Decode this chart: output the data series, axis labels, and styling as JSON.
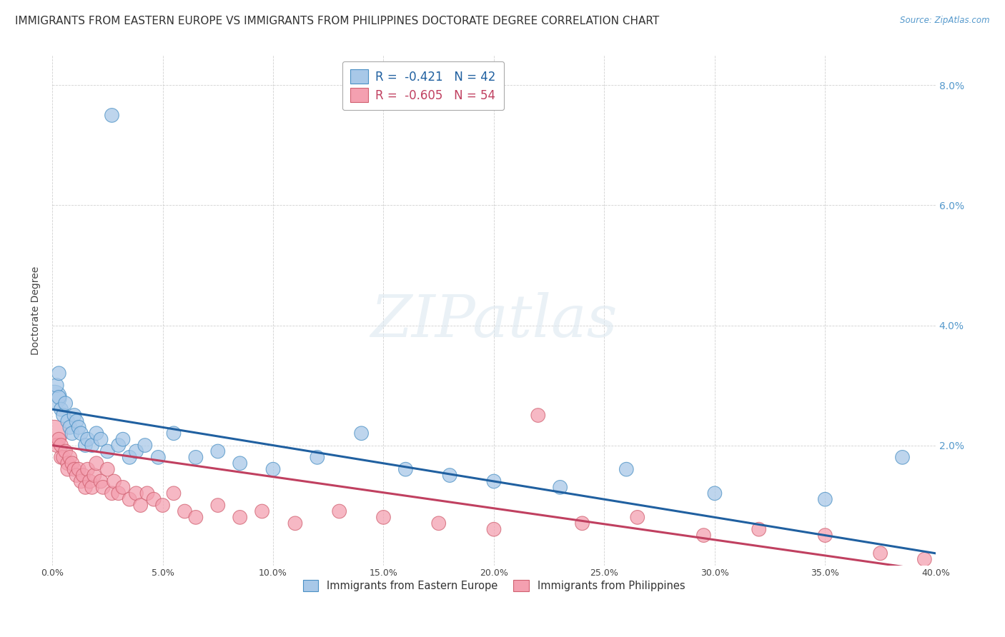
{
  "title": "IMMIGRANTS FROM EASTERN EUROPE VS IMMIGRANTS FROM PHILIPPINES DOCTORATE DEGREE CORRELATION CHART",
  "source": "Source: ZipAtlas.com",
  "ylabel": "Doctorate Degree",
  "xlabel": "",
  "xlim": [
    0.0,
    0.4
  ],
  "ylim": [
    0.0,
    0.085
  ],
  "xticks": [
    0.0,
    0.05,
    0.1,
    0.15,
    0.2,
    0.25,
    0.3,
    0.35,
    0.4
  ],
  "xtick_labels": [
    "0.0%",
    "5.0%",
    "10.0%",
    "15.0%",
    "20.0%",
    "25.0%",
    "30.0%",
    "35.0%",
    "40.0%"
  ],
  "yticks": [
    0.0,
    0.02,
    0.04,
    0.06,
    0.08
  ],
  "ytick_labels_right": [
    "",
    "2.0%",
    "4.0%",
    "6.0%",
    "8.0%"
  ],
  "series1_label": "Immigrants from Eastern Europe",
  "series1_color": "#a8c8e8",
  "series1_edge_color": "#4a90c4",
  "series1_line_color": "#2060a0",
  "series1_R": "-0.421",
  "series1_N": "42",
  "series2_label": "Immigrants from Philippines",
  "series2_color": "#f4a0b0",
  "series2_edge_color": "#d06070",
  "series2_line_color": "#c04060",
  "series2_R": "-0.605",
  "series2_N": "54",
  "series1_x": [
    0.001,
    0.002,
    0.003,
    0.003,
    0.004,
    0.005,
    0.006,
    0.007,
    0.008,
    0.009,
    0.01,
    0.011,
    0.012,
    0.013,
    0.015,
    0.016,
    0.018,
    0.02,
    0.022,
    0.025,
    0.027,
    0.03,
    0.032,
    0.035,
    0.038,
    0.042,
    0.048,
    0.055,
    0.065,
    0.075,
    0.085,
    0.1,
    0.12,
    0.14,
    0.16,
    0.18,
    0.2,
    0.23,
    0.26,
    0.3,
    0.35,
    0.385
  ],
  "series1_y": [
    0.028,
    0.03,
    0.032,
    0.028,
    0.026,
    0.025,
    0.027,
    0.024,
    0.023,
    0.022,
    0.025,
    0.024,
    0.023,
    0.022,
    0.02,
    0.021,
    0.02,
    0.022,
    0.021,
    0.019,
    0.075,
    0.02,
    0.021,
    0.018,
    0.019,
    0.02,
    0.018,
    0.022,
    0.018,
    0.019,
    0.017,
    0.016,
    0.018,
    0.022,
    0.016,
    0.015,
    0.014,
    0.013,
    0.016,
    0.012,
    0.011,
    0.018
  ],
  "series1_sizes": [
    600,
    200,
    200,
    200,
    200,
    200,
    200,
    200,
    200,
    200,
    200,
    200,
    200,
    200,
    200,
    200,
    200,
    200,
    200,
    200,
    200,
    200,
    200,
    200,
    200,
    200,
    200,
    200,
    200,
    200,
    200,
    200,
    200,
    200,
    200,
    200,
    200,
    200,
    200,
    200,
    200,
    200
  ],
  "series2_x": [
    0.001,
    0.002,
    0.003,
    0.004,
    0.004,
    0.005,
    0.006,
    0.007,
    0.007,
    0.008,
    0.009,
    0.01,
    0.011,
    0.012,
    0.013,
    0.014,
    0.015,
    0.016,
    0.017,
    0.018,
    0.019,
    0.02,
    0.022,
    0.023,
    0.025,
    0.027,
    0.028,
    0.03,
    0.032,
    0.035,
    0.038,
    0.04,
    0.043,
    0.046,
    0.05,
    0.055,
    0.06,
    0.065,
    0.075,
    0.085,
    0.095,
    0.11,
    0.13,
    0.15,
    0.175,
    0.2,
    0.22,
    0.24,
    0.265,
    0.295,
    0.32,
    0.35,
    0.375,
    0.395
  ],
  "series2_y": [
    0.022,
    0.02,
    0.021,
    0.018,
    0.02,
    0.018,
    0.019,
    0.017,
    0.016,
    0.018,
    0.017,
    0.016,
    0.015,
    0.016,
    0.014,
    0.015,
    0.013,
    0.016,
    0.014,
    0.013,
    0.015,
    0.017,
    0.014,
    0.013,
    0.016,
    0.012,
    0.014,
    0.012,
    0.013,
    0.011,
    0.012,
    0.01,
    0.012,
    0.011,
    0.01,
    0.012,
    0.009,
    0.008,
    0.01,
    0.008,
    0.009,
    0.007,
    0.009,
    0.008,
    0.007,
    0.006,
    0.025,
    0.007,
    0.008,
    0.005,
    0.006,
    0.005,
    0.002,
    0.001
  ],
  "series2_sizes": [
    700,
    200,
    200,
    200,
    200,
    200,
    200,
    200,
    200,
    200,
    200,
    200,
    200,
    200,
    200,
    200,
    200,
    200,
    200,
    200,
    200,
    200,
    200,
    200,
    200,
    200,
    200,
    200,
    200,
    200,
    200,
    200,
    200,
    200,
    200,
    200,
    200,
    200,
    200,
    200,
    200,
    200,
    200,
    200,
    200,
    200,
    200,
    200,
    200,
    200,
    200,
    200,
    200,
    200
  ],
  "background_color": "#ffffff",
  "grid_color": "#cccccc",
  "title_fontsize": 11,
  "axis_fontsize": 10,
  "tick_fontsize": 9,
  "right_tick_color": "#5599cc",
  "watermark_color": "#dde8f0",
  "watermark_alpha": 0.6
}
